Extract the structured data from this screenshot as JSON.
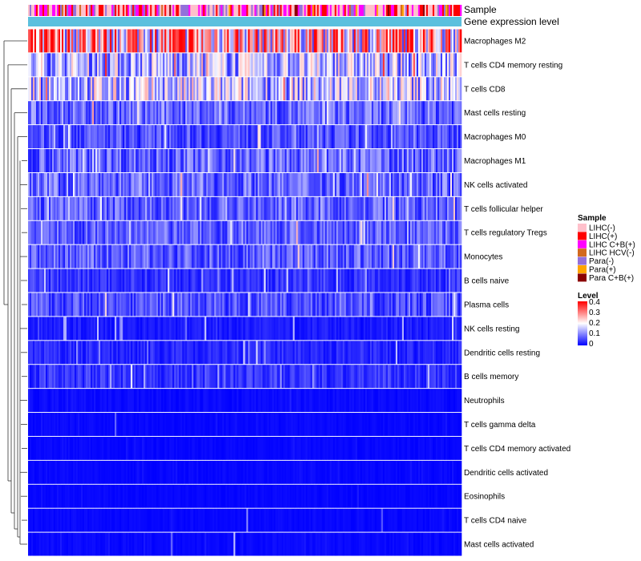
{
  "chart_data": {
    "type": "heatmap",
    "title": "",
    "annotation_tracks": [
      {
        "name": "Sample"
      },
      {
        "name": "Gene expression level"
      }
    ],
    "rows": [
      {
        "label": "Macrophages M2",
        "mean": 0.26
      },
      {
        "label": "T cells CD4 memory resting",
        "mean": 0.14
      },
      {
        "label": "T cells CD8",
        "mean": 0.15
      },
      {
        "label": "Mast cells resting",
        "mean": 0.08
      },
      {
        "label": "Macrophages M0",
        "mean": 0.06
      },
      {
        "label": "Macrophages M1",
        "mean": 0.08
      },
      {
        "label": "NK cells activated",
        "mean": 0.08
      },
      {
        "label": "T cells follicular helper",
        "mean": 0.07
      },
      {
        "label": "T cells regulatory  Tregs",
        "mean": 0.07
      },
      {
        "label": "Monocytes",
        "mean": 0.07
      },
      {
        "label": "B cells naive",
        "mean": 0.04
      },
      {
        "label": "Plasma cells",
        "mean": 0.06
      },
      {
        "label": "NK cells resting",
        "mean": 0.02
      },
      {
        "label": "Dendritic cells resting",
        "mean": 0.03
      },
      {
        "label": "B cells memory",
        "mean": 0.04
      },
      {
        "label": "Neutrophils",
        "mean": 0.015
      },
      {
        "label": "T cells gamma delta",
        "mean": 0.01
      },
      {
        "label": "T cells CD4 memory activated",
        "mean": 0.01
      },
      {
        "label": "Dendritic cells activated",
        "mean": 0.01
      },
      {
        "label": "Eosinophils",
        "mean": 0.008
      },
      {
        "label": "T cells CD4 naive",
        "mean": 0.01
      },
      {
        "label": "Mast cells activated",
        "mean": 0.012
      }
    ],
    "legend_sample": {
      "title": "Sample",
      "entries": [
        {
          "label": "LIHC(-)",
          "color": "#ffc0cb"
        },
        {
          "label": "LIHC(+)",
          "color": "#ff0000"
        },
        {
          "label": "LIHC C+B(+)",
          "color": "#ff00ff"
        },
        {
          "label": "LIHC HCV(-)",
          "color": "#d2691e"
        },
        {
          "label": "Para(-)",
          "color": "#9370db"
        },
        {
          "label": "Para(+)",
          "color": "#ffa500"
        },
        {
          "label": "Para C+B(+)",
          "color": "#8b0000"
        }
      ]
    },
    "legend_level": {
      "title": "Level",
      "ticks": [
        "0.4",
        "0.3",
        "0.2",
        "0.1",
        "0"
      ],
      "range": [
        0,
        0.4
      ],
      "colors": [
        "#0000ff",
        "#ffffff",
        "#ff0000"
      ]
    },
    "gene_expression_color": "#5bc0de"
  }
}
